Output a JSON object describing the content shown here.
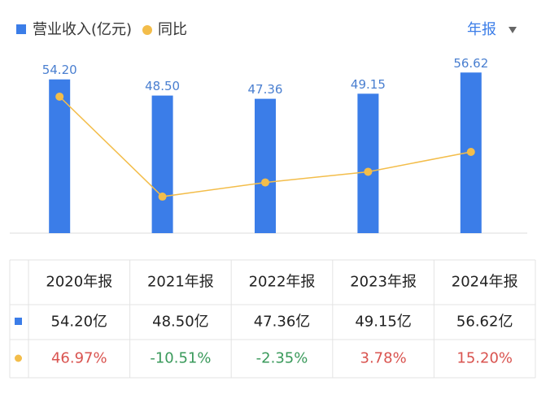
{
  "chart_data": {
    "type": "bar-line",
    "categories": [
      "2020年报",
      "2021年报",
      "2022年报",
      "2023年报",
      "2024年报"
    ],
    "series": [
      {
        "name": "营业收入(亿元)",
        "color": "#3b7de8",
        "label_color": "#4a7fd0",
        "values": [
          54.2,
          48.5,
          47.36,
          49.15,
          56.62
        ],
        "value_labels": [
          "54.20",
          "48.50",
          "47.36",
          "49.15",
          "56.62"
        ]
      },
      {
        "name": "同比",
        "color": "#f3bd4a",
        "axis": "y2",
        "values": [
          46.97,
          -10.51,
          -2.35,
          3.78,
          15.2
        ]
      }
    ],
    "ylim": [
      0,
      65
    ],
    "y2lim": [
      -31.5,
      74.5
    ],
    "period_selector": "年报"
  },
  "table": {
    "revenue_labels": [
      "54.20亿",
      "48.50亿",
      "47.36亿",
      "49.15亿",
      "56.62亿"
    ],
    "yoy_labels": [
      "46.97%",
      "-10.51%",
      "-2.35%",
      "3.78%",
      "15.20%"
    ],
    "positive_color": "#d9534f",
    "negative_color": "#3a9a5b"
  }
}
